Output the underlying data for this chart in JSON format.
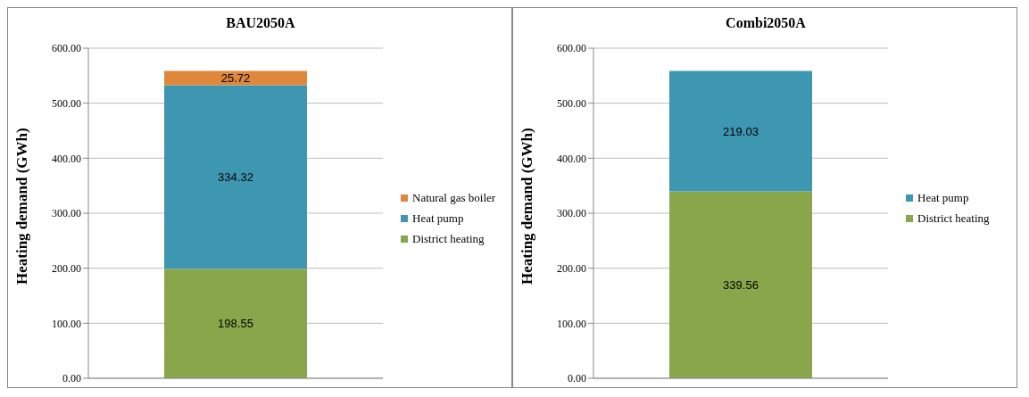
{
  "chart_data": [
    {
      "type": "bar",
      "title": "BAU2050A",
      "ylabel": "Heating demand (GWh)",
      "categories": [
        null
      ],
      "stacked": true,
      "data_labels": true,
      "grid": "y",
      "legend": "right",
      "ylim": [
        0,
        600
      ],
      "yticks": [
        {
          "value": 0,
          "label": "0.00"
        },
        {
          "value": 100,
          "label": "100.00"
        },
        {
          "value": 200,
          "label": "200.00"
        },
        {
          "value": 300,
          "label": "300.00"
        },
        {
          "value": 400,
          "label": "400.00"
        },
        {
          "value": 500,
          "label": "500.00"
        },
        {
          "value": 600,
          "label": "600.00"
        }
      ],
      "series": [
        {
          "name": "District heating",
          "color": "#8aa64b",
          "values": [
            198.55
          ]
        },
        {
          "name": "Heat pump",
          "color": "#3e97b0",
          "values": [
            334.32
          ]
        },
        {
          "name": "Natural gas boiler",
          "color": "#e0873a",
          "values": [
            25.72
          ]
        }
      ]
    },
    {
      "type": "bar",
      "title": "Combi2050A",
      "ylabel": "Heating demand (GWh)",
      "categories": [
        null
      ],
      "stacked": true,
      "data_labels": true,
      "grid": "y",
      "legend": "right",
      "ylim": [
        0,
        600
      ],
      "yticks": [
        {
          "value": 0,
          "label": "0.00"
        },
        {
          "value": 100,
          "label": "100.00"
        },
        {
          "value": 200,
          "label": "200.00"
        },
        {
          "value": 300,
          "label": "300.00"
        },
        {
          "value": 400,
          "label": "400.00"
        },
        {
          "value": 500,
          "label": "500.00"
        },
        {
          "value": 600,
          "label": "600.00"
        }
      ],
      "series": [
        {
          "name": "District heating",
          "color": "#8aa64b",
          "values": [
            339.56
          ]
        },
        {
          "name": "Heat pump",
          "color": "#3e97b0",
          "values": [
            219.03
          ]
        }
      ]
    }
  ]
}
